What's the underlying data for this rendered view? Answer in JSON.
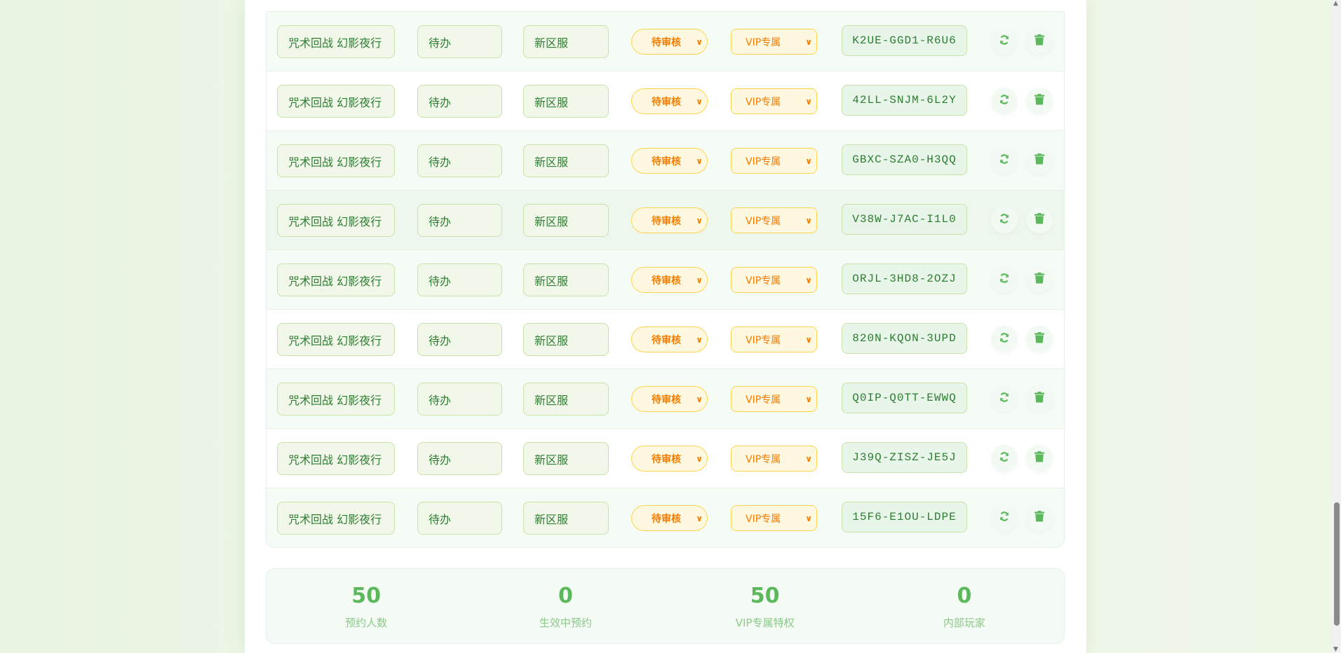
{
  "rows": [
    {
      "name": "咒术回战 幻影夜行",
      "status": "待办",
      "server": "新区服",
      "audit": "待审核",
      "privilege": "VIP专属",
      "code": "K2UE-GGD1-R6U6"
    },
    {
      "name": "咒术回战 幻影夜行",
      "status": "待办",
      "server": "新区服",
      "audit": "待审核",
      "privilege": "VIP专属",
      "code": "42LL-SNJM-6L2Y"
    },
    {
      "name": "咒术回战 幻影夜行",
      "status": "待办",
      "server": "新区服",
      "audit": "待审核",
      "privilege": "VIP专属",
      "code": "GBXC-SZA0-H3QQ"
    },
    {
      "name": "咒术回战 幻影夜行",
      "status": "待办",
      "server": "新区服",
      "audit": "待审核",
      "privilege": "VIP专属",
      "code": "V38W-J7AC-I1L0"
    },
    {
      "name": "咒术回战 幻影夜行",
      "status": "待办",
      "server": "新区服",
      "audit": "待审核",
      "privilege": "VIP专属",
      "code": "ORJL-3HD8-2OZJ"
    },
    {
      "name": "咒术回战 幻影夜行",
      "status": "待办",
      "server": "新区服",
      "audit": "待审核",
      "privilege": "VIP专属",
      "code": "820N-KQON-3UPD"
    },
    {
      "name": "咒术回战 幻影夜行",
      "status": "待办",
      "server": "新区服",
      "audit": "待审核",
      "privilege": "VIP专属",
      "code": "Q0IP-Q0TT-EWWQ"
    },
    {
      "name": "咒术回战 幻影夜行",
      "status": "待办",
      "server": "新区服",
      "audit": "待审核",
      "privilege": "VIP专属",
      "code": "J39Q-ZISZ-JE5J"
    },
    {
      "name": "咒术回战 幻影夜行",
      "status": "待办",
      "server": "新区服",
      "audit": "待审核",
      "privilege": "VIP专属",
      "code": "15F6-E1OU-LDPE"
    }
  ],
  "icons": {
    "refresh": "refresh-icon",
    "delete": "trash-icon",
    "dropdown": "chevron-down-icon"
  },
  "stats": [
    {
      "value": "50",
      "label": "预约人数"
    },
    {
      "value": "0",
      "label": "生效中预约"
    },
    {
      "value": "50",
      "label": "VIP专属特权"
    },
    {
      "value": "0",
      "label": "内部玩家"
    }
  ],
  "colors": {
    "primary": "#5cb85c",
    "text": "#2e7d32",
    "warning": "#f57c00",
    "warning_bg": "#fff8e1"
  }
}
